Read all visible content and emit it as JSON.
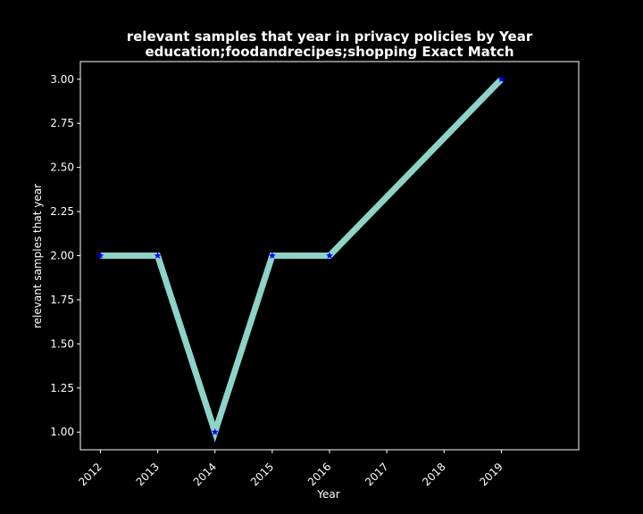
{
  "chart_data": {
    "type": "line",
    "title": "relevant samples that year in privacy policies by Year",
    "subtitle": "education;foodandrecipes;shopping Exact Match",
    "xlabel": "Year",
    "ylabel": "relevant samples that year",
    "x": [
      2012,
      2013,
      2014,
      2015,
      2016,
      2019
    ],
    "y": [
      2,
      2,
      1,
      2,
      2,
      3
    ],
    "x_ticks": [
      "2012",
      "2013",
      "2014",
      "2015",
      "2016",
      "2017",
      "2018",
      "2019"
    ],
    "y_ticks": [
      "1.00",
      "1.25",
      "1.50",
      "1.75",
      "2.00",
      "2.25",
      "2.50",
      "2.75",
      "3.00"
    ],
    "xlim": [
      2011.65,
      2020.35
    ],
    "ylim": [
      0.9,
      3.1
    ],
    "grid": false,
    "line_color": "#8dd3c7",
    "marker_color": "#0000ff",
    "background_color": "#000000",
    "text_color": "#ffffff"
  }
}
